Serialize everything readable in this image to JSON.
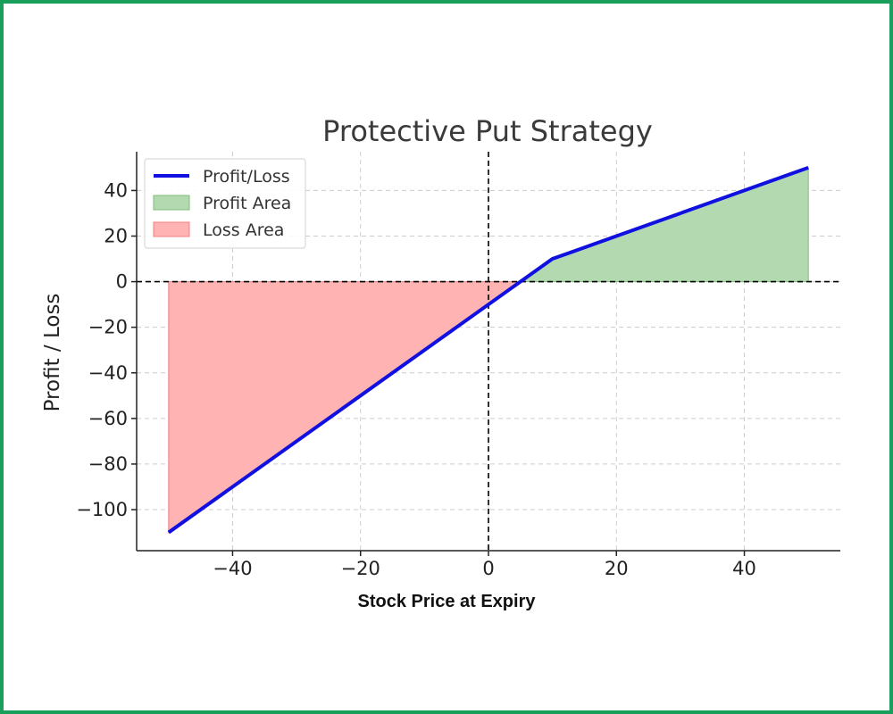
{
  "colors": {
    "frame_border": "#1a9e5c",
    "line": "#1010e0",
    "profit_fill": "#b3d9b0",
    "profit_edge": "#7fbf7a",
    "loss_fill": "#ffb3b3",
    "loss_edge": "#f08080",
    "grid": "#cccccc",
    "reference_lines": "#000000"
  },
  "chart_data": {
    "type": "line",
    "title": "Protective Put Strategy",
    "xlabel": "Stock Price at Expiry",
    "ylabel": "Profit / Loss",
    "xlim": [
      -55,
      55
    ],
    "ylim": [
      -118,
      57
    ],
    "x_ticks": [
      -40,
      -20,
      0,
      20,
      40
    ],
    "y_ticks": [
      40,
      20,
      0,
      -20,
      -40,
      -60,
      -80,
      -100
    ],
    "x_tick_labels": [
      "−40",
      "−20",
      "0",
      "20",
      "40"
    ],
    "y_tick_labels": [
      "40",
      "20",
      "0",
      "−20",
      "−40",
      "−60",
      "−80",
      "−100"
    ],
    "grid": true,
    "legend_position": "top-left",
    "reference_lines": {
      "horizontal_y": 0,
      "vertical_x": 0
    },
    "series": [
      {
        "name": "Profit/Loss",
        "x": [
          -50,
          10,
          50
        ],
        "y": [
          -110,
          10,
          50
        ]
      }
    ],
    "areas": [
      {
        "name": "Profit Area",
        "x": [
          5,
          10,
          50
        ],
        "y": [
          0,
          10,
          50
        ]
      },
      {
        "name": "Loss Area",
        "x": [
          -50,
          5
        ],
        "y": [
          -110,
          0
        ]
      }
    ],
    "legend": [
      "Profit/Loss",
      "Profit Area",
      "Loss Area"
    ]
  }
}
